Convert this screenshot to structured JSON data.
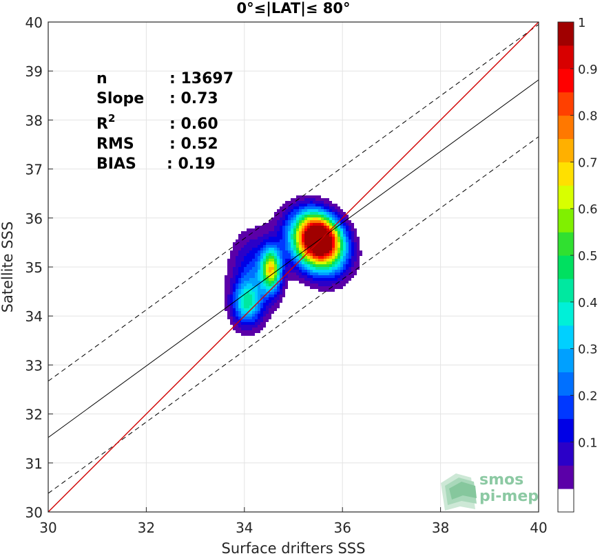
{
  "chart_data": {
    "type": "heatmap",
    "title": "0°≤|LAT|≤ 80°",
    "xlabel": "Surface drifters SSS",
    "ylabel": "Satellite SSS",
    "xlim": [
      30,
      40
    ],
    "ylim": [
      30,
      40
    ],
    "xticks": [
      "30",
      "32",
      "34",
      "36",
      "38",
      "40"
    ],
    "yticks": [
      "30",
      "31",
      "32",
      "33",
      "34",
      "35",
      "36",
      "37",
      "38",
      "39",
      "40"
    ],
    "grid": true,
    "stats": [
      {
        "label": "n",
        "value": ": 13697"
      },
      {
        "label": "Slope",
        "value": ": 0.73"
      },
      {
        "label": "R",
        "sup": "2",
        "value": ": 0.60"
      },
      {
        "label": "RMS",
        "value": ": 0.52"
      },
      {
        "label": "BIAS",
        "value": ": 0.19"
      }
    ],
    "lines": {
      "identity": {
        "x": [
          30,
          40
        ],
        "y": [
          30,
          40
        ],
        "color": "#d00000"
      },
      "regression": {
        "x": [
          30,
          40
        ],
        "y": [
          31.52,
          38.82
        ],
        "color": "#000000"
      },
      "upper_bound": {
        "x": [
          30,
          40
        ],
        "y": [
          32.67,
          39.95
        ],
        "color": "#000000",
        "style": "dashed"
      },
      "lower_bound": {
        "x": [
          30,
          40
        ],
        "y": [
          30.38,
          37.66
        ],
        "color": "#000000",
        "style": "dashed"
      }
    },
    "density_peaks": [
      {
        "x": 35.45,
        "y": 35.45,
        "sx": 0.42,
        "sy": 0.32,
        "amp": 1.0,
        "rot": -0.9
      },
      {
        "x": 35.6,
        "y": 35.7,
        "sx": 0.35,
        "sy": 0.25,
        "amp": 0.55,
        "rot": -0.9
      },
      {
        "x": 34.55,
        "y": 34.95,
        "sx": 0.14,
        "sy": 0.3,
        "amp": 0.65,
        "rot": 0
      },
      {
        "x": 34.05,
        "y": 34.25,
        "sx": 0.2,
        "sy": 0.3,
        "amp": 0.38,
        "rot": 0
      },
      {
        "x": 34.2,
        "y": 34.85,
        "sx": 0.32,
        "sy": 0.55,
        "amp": 0.22,
        "rot": 0
      }
    ],
    "colorbar": {
      "min": 0,
      "max": 1,
      "ticks": [
        "0.1",
        "0.2",
        "0.3",
        "0.4",
        "0.5",
        "0.6",
        "0.7",
        "0.8",
        "0.9",
        "1"
      ],
      "levels": 20,
      "colors": [
        "#ffffff",
        "#5b00a8",
        "#2b00c8",
        "#0000e6",
        "#0038ff",
        "#0070ff",
        "#00a0ff",
        "#00d0ff",
        "#00f0d8",
        "#00e8a0",
        "#00e060",
        "#30e030",
        "#80f000",
        "#d8ff00",
        "#ffe000",
        "#ffb000",
        "#ff7800",
        "#ff4000",
        "#ff0000",
        "#d80000",
        "#a00000"
      ]
    },
    "watermark": {
      "line1": "smos",
      "line2": "pi-mep"
    }
  }
}
